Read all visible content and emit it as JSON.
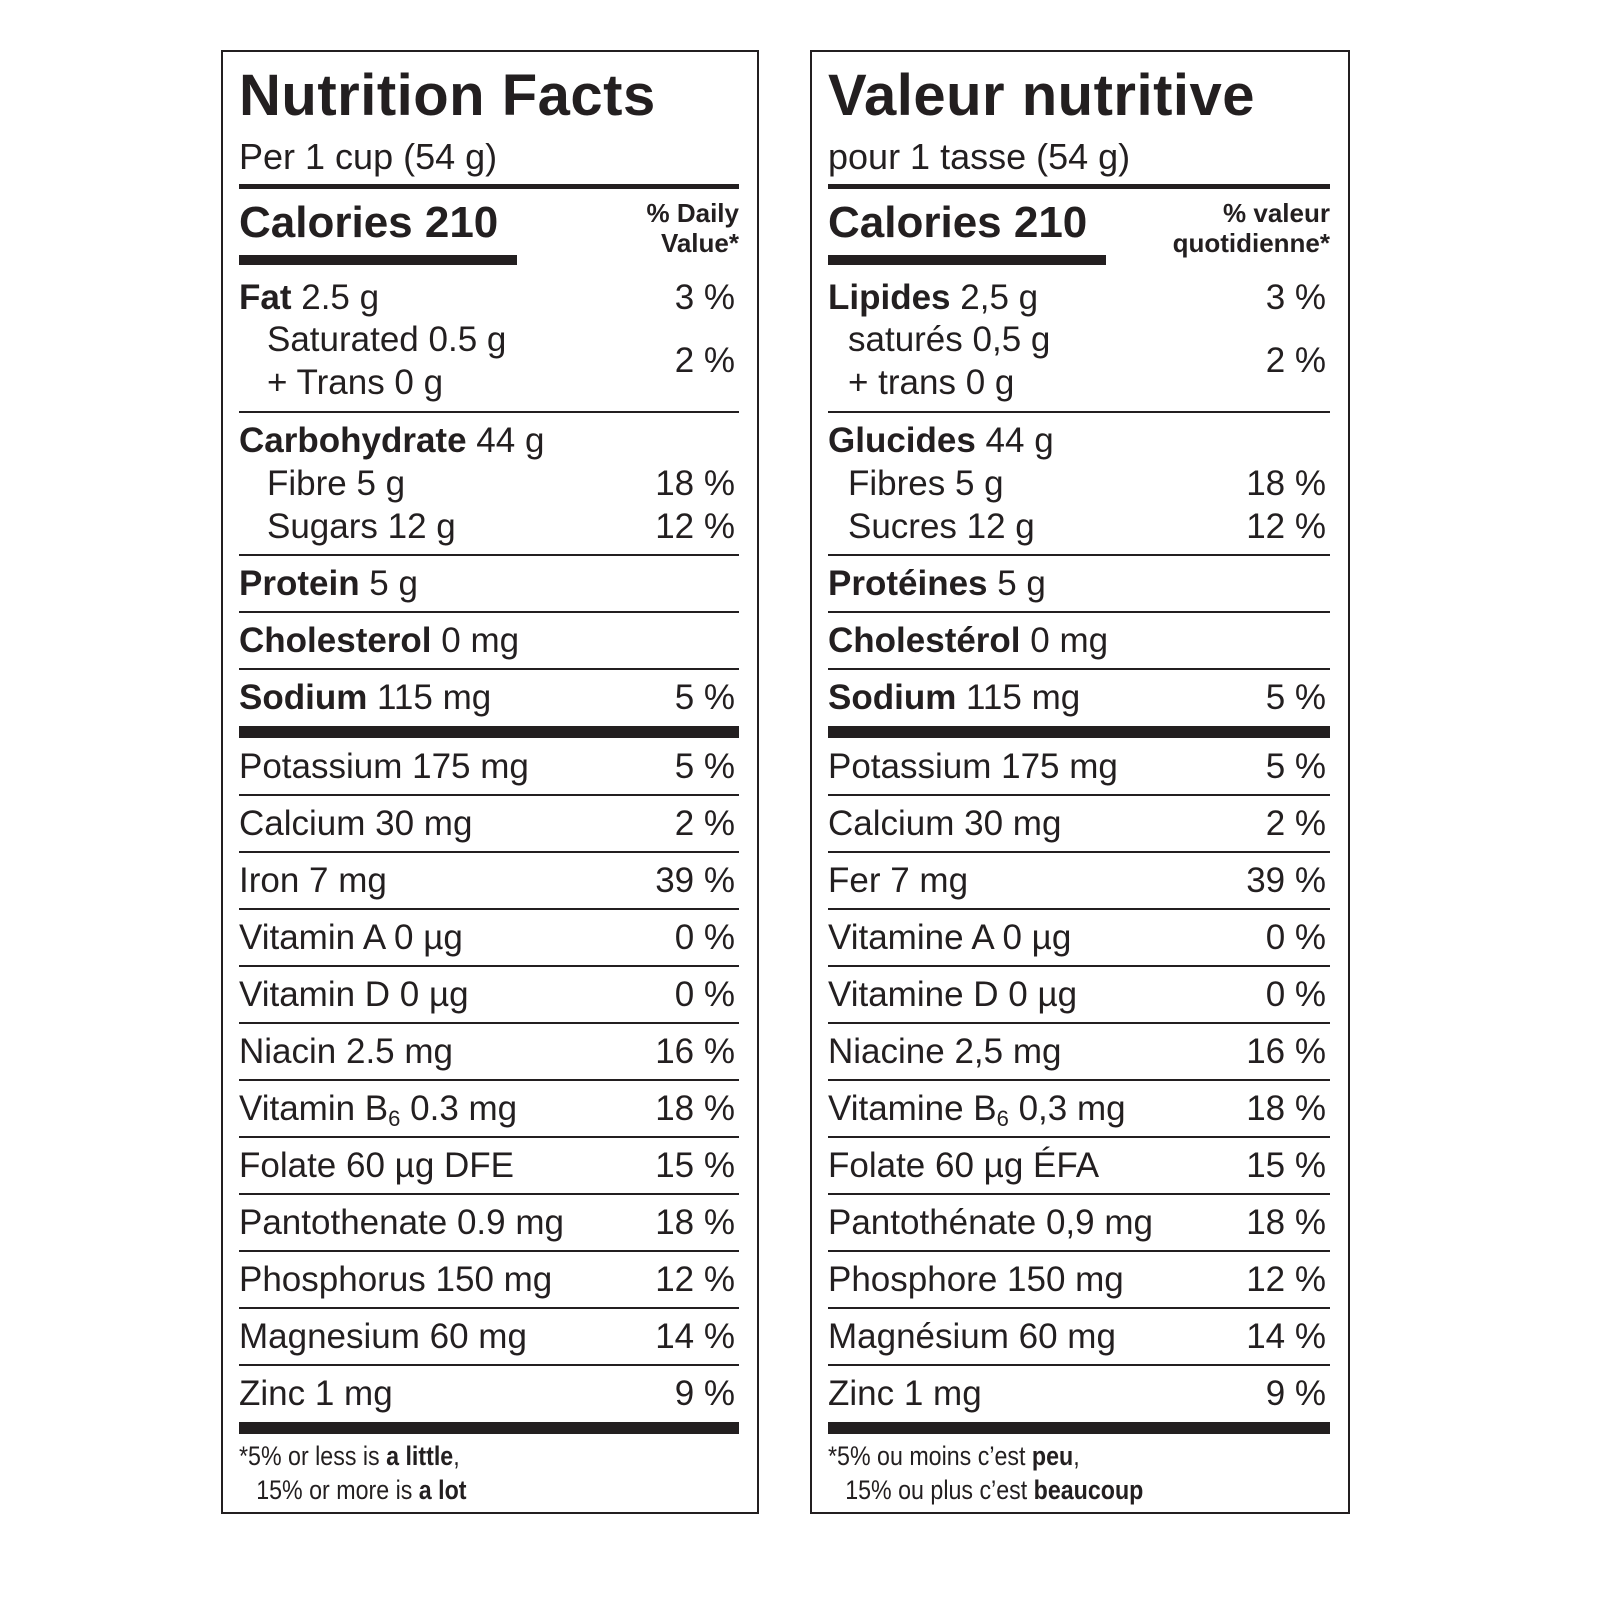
{
  "labels": [
    {
      "id": "en",
      "title": "Nutrition Facts",
      "serving": "Per 1 cup (54 g)",
      "calories": "Calories 210",
      "dv_line1": "% Daily",
      "dv_line2": "Value*",
      "fat": {
        "name": "Fat",
        "amount": " 2.5 g",
        "pct": "3 %"
      },
      "saturated": {
        "text": "Saturated 0.5 g",
        "pct": "2 %"
      },
      "trans": {
        "text": "+ Trans 0 g"
      },
      "carbohydrate": {
        "name": "Carbohydrate",
        "amount": " 44 g"
      },
      "fibre": {
        "text": "Fibre 5 g",
        "pct": "18 %"
      },
      "sugars": {
        "text": "Sugars 12 g",
        "pct": "12 %"
      },
      "protein": {
        "name": "Protein",
        "amount": " 5 g"
      },
      "cholesterol": {
        "name": "Cholesterol",
        "amount": " 0 mg"
      },
      "sodium": {
        "name": "Sodium",
        "amount": " 115 mg",
        "pct": "5 %"
      },
      "potassium": {
        "text": "Potassium 175 mg",
        "pct": "5 %"
      },
      "calcium": {
        "text": "Calcium 30 mg",
        "pct": "2 %"
      },
      "iron": {
        "text": "Iron 7 mg",
        "pct": "39 %"
      },
      "vitamin_a": {
        "text": "Vitamin A 0 µg",
        "pct": "0 %"
      },
      "vitamin_d": {
        "text": "Vitamin D 0 µg",
        "pct": "0 %"
      },
      "niacin": {
        "text": "Niacin 2.5 mg",
        "pct": "16 %"
      },
      "vitamin_b6": {
        "pre": "Vitamin B",
        "sub": "6",
        "post": " 0.3 mg",
        "pct": "18 %"
      },
      "folate": {
        "text": "Folate 60 µg DFE",
        "pct": "15 %"
      },
      "pantothenate": {
        "text": "Pantothenate 0.9 mg",
        "pct": "18 %"
      },
      "phosphorus": {
        "text": "Phosphorus 150 mg",
        "pct": "12 %"
      },
      "magnesium": {
        "text": "Magnesium 60 mg",
        "pct": "14 %"
      },
      "zinc": {
        "text": "Zinc 1 mg",
        "pct": "9 %"
      },
      "foot1_pre": "*5% or less is ",
      "foot1_bold": "a little",
      "foot1_post": ",",
      "foot2_pre": "15% or more is ",
      "foot2_bold": "a lot"
    },
    {
      "id": "fr",
      "title": "Valeur nutritive",
      "serving": "pour 1 tasse (54 g)",
      "calories": "Calories 210",
      "dv_line1": "% valeur",
      "dv_line2": "quotidienne*",
      "fat": {
        "name": "Lipides",
        "amount": " 2,5 g",
        "pct": "3 %"
      },
      "saturated": {
        "text": "saturés 0,5 g",
        "pct": "2 %"
      },
      "trans": {
        "text": "+ trans 0 g"
      },
      "carbohydrate": {
        "name": "Glucides",
        "amount": " 44 g"
      },
      "fibre": {
        "text": "Fibres 5 g",
        "pct": "18 %"
      },
      "sugars": {
        "text": "Sucres 12 g",
        "pct": "12 %"
      },
      "protein": {
        "name": "Protéines",
        "amount": " 5 g"
      },
      "cholesterol": {
        "name": "Cholestérol",
        "amount": " 0 mg"
      },
      "sodium": {
        "name": "Sodium",
        "amount": " 115 mg",
        "pct": "5 %"
      },
      "potassium": {
        "text": "Potassium 175 mg",
        "pct": "5 %"
      },
      "calcium": {
        "text": "Calcium 30 mg",
        "pct": "2 %"
      },
      "iron": {
        "text": "Fer 7 mg",
        "pct": "39 %"
      },
      "vitamin_a": {
        "text": "Vitamine A 0 µg",
        "pct": "0 %"
      },
      "vitamin_d": {
        "text": "Vitamine D 0 µg",
        "pct": "0 %"
      },
      "niacin": {
        "text": "Niacine 2,5 mg",
        "pct": "16 %"
      },
      "vitamin_b6": {
        "pre": "Vitamine B",
        "sub": "6",
        "post": " 0,3 mg",
        "pct": "18 %"
      },
      "folate": {
        "text": "Folate 60 µg ÉFA",
        "pct": "15 %"
      },
      "pantothenate": {
        "text": "Pantothénate 0,9 mg",
        "pct": "18 %"
      },
      "phosphorus": {
        "text": "Phosphore 150 mg",
        "pct": "12 %"
      },
      "magnesium": {
        "text": "Magnésium 60 mg",
        "pct": "14 %"
      },
      "zinc": {
        "text": "Zinc 1 mg",
        "pct": "9 %"
      },
      "foot1_pre": "*5% ou moins c’est ",
      "foot1_bold": "peu",
      "foot1_post": ",",
      "foot2_pre": "15% ou plus c’est ",
      "foot2_bold": "beaucoup"
    }
  ]
}
